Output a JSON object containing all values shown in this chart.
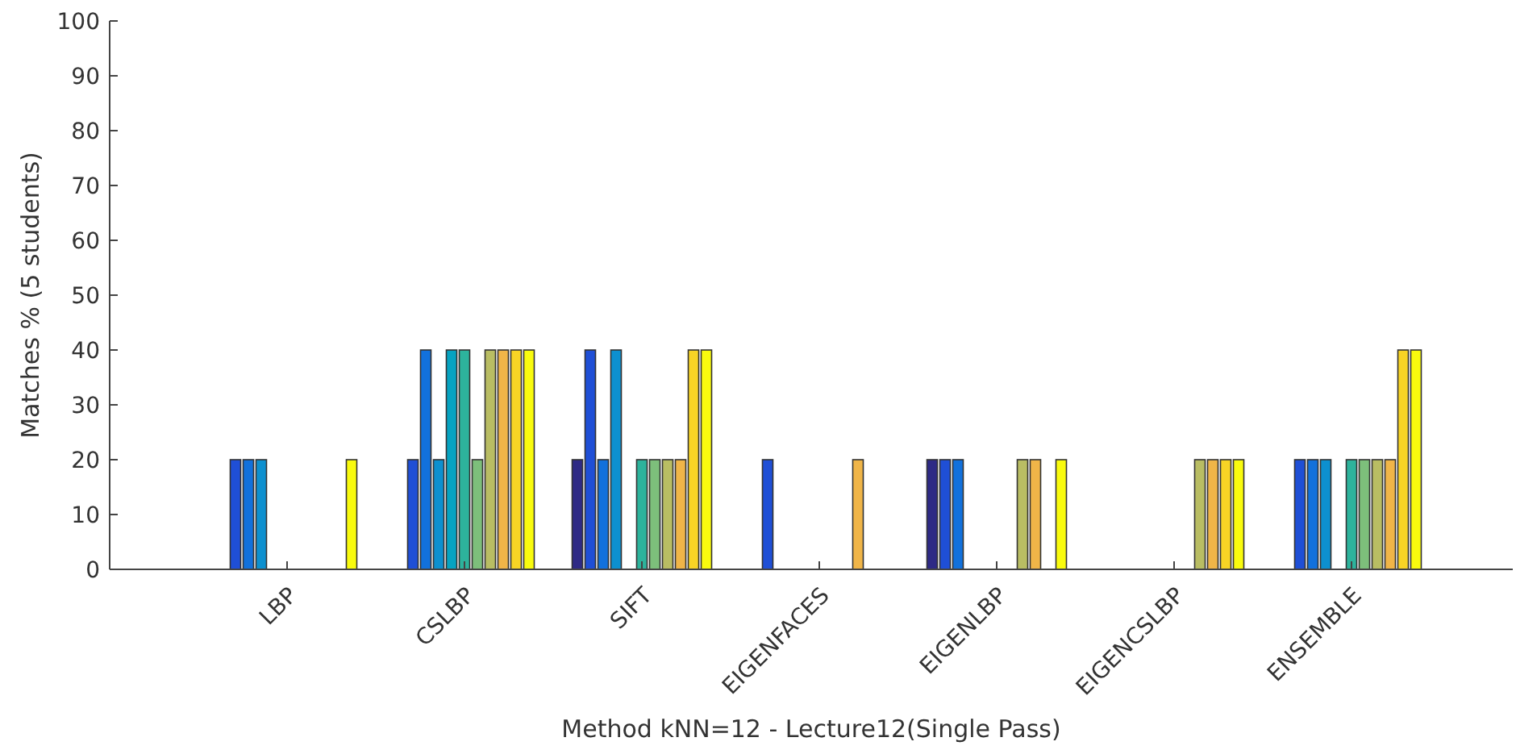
{
  "chart_data": {
    "type": "bar",
    "xlabel": "Method kNN=12 - Lecture12(Single Pass)",
    "ylabel": "Matches % (5 students)",
    "categories": [
      "LBP",
      "CSLBP",
      "SIFT",
      "EIGENFACES",
      "EIGENLBP",
      "EIGENCSLBP",
      "ENSEMBLE"
    ],
    "series": [
      {
        "color": "#2e2a85",
        "values": [
          0,
          0,
          20,
          0,
          20,
          0,
          0
        ]
      },
      {
        "color": "#1f4fd6",
        "values": [
          20,
          20,
          40,
          20,
          20,
          0,
          20
        ]
      },
      {
        "color": "#1271dc",
        "values": [
          20,
          40,
          20,
          0,
          20,
          0,
          20
        ]
      },
      {
        "color": "#0d90cf",
        "values": [
          20,
          20,
          40,
          0,
          0,
          0,
          20
        ]
      },
      {
        "color": "#06a3c1",
        "values": [
          0,
          40,
          0,
          0,
          0,
          0,
          0
        ]
      },
      {
        "color": "#2db39c",
        "values": [
          0,
          40,
          20,
          0,
          0,
          0,
          20
        ]
      },
      {
        "color": "#7dbf7b",
        "values": [
          0,
          20,
          20,
          0,
          0,
          0,
          20
        ]
      },
      {
        "color": "#b9bd63",
        "values": [
          0,
          40,
          20,
          0,
          20,
          20,
          20
        ]
      },
      {
        "color": "#f0b548",
        "values": [
          0,
          40,
          20,
          20,
          20,
          20,
          20
        ]
      },
      {
        "color": "#f8d425",
        "values": [
          0,
          40,
          40,
          0,
          0,
          20,
          40
        ]
      },
      {
        "color": "#f9fb0e",
        "values": [
          20,
          40,
          40,
          0,
          20,
          20,
          40
        ]
      }
    ],
    "ylim": [
      0,
      100
    ],
    "yticks": [
      0,
      10,
      20,
      30,
      40,
      50,
      60,
      70,
      80,
      90,
      100
    ],
    "grid": false
  }
}
